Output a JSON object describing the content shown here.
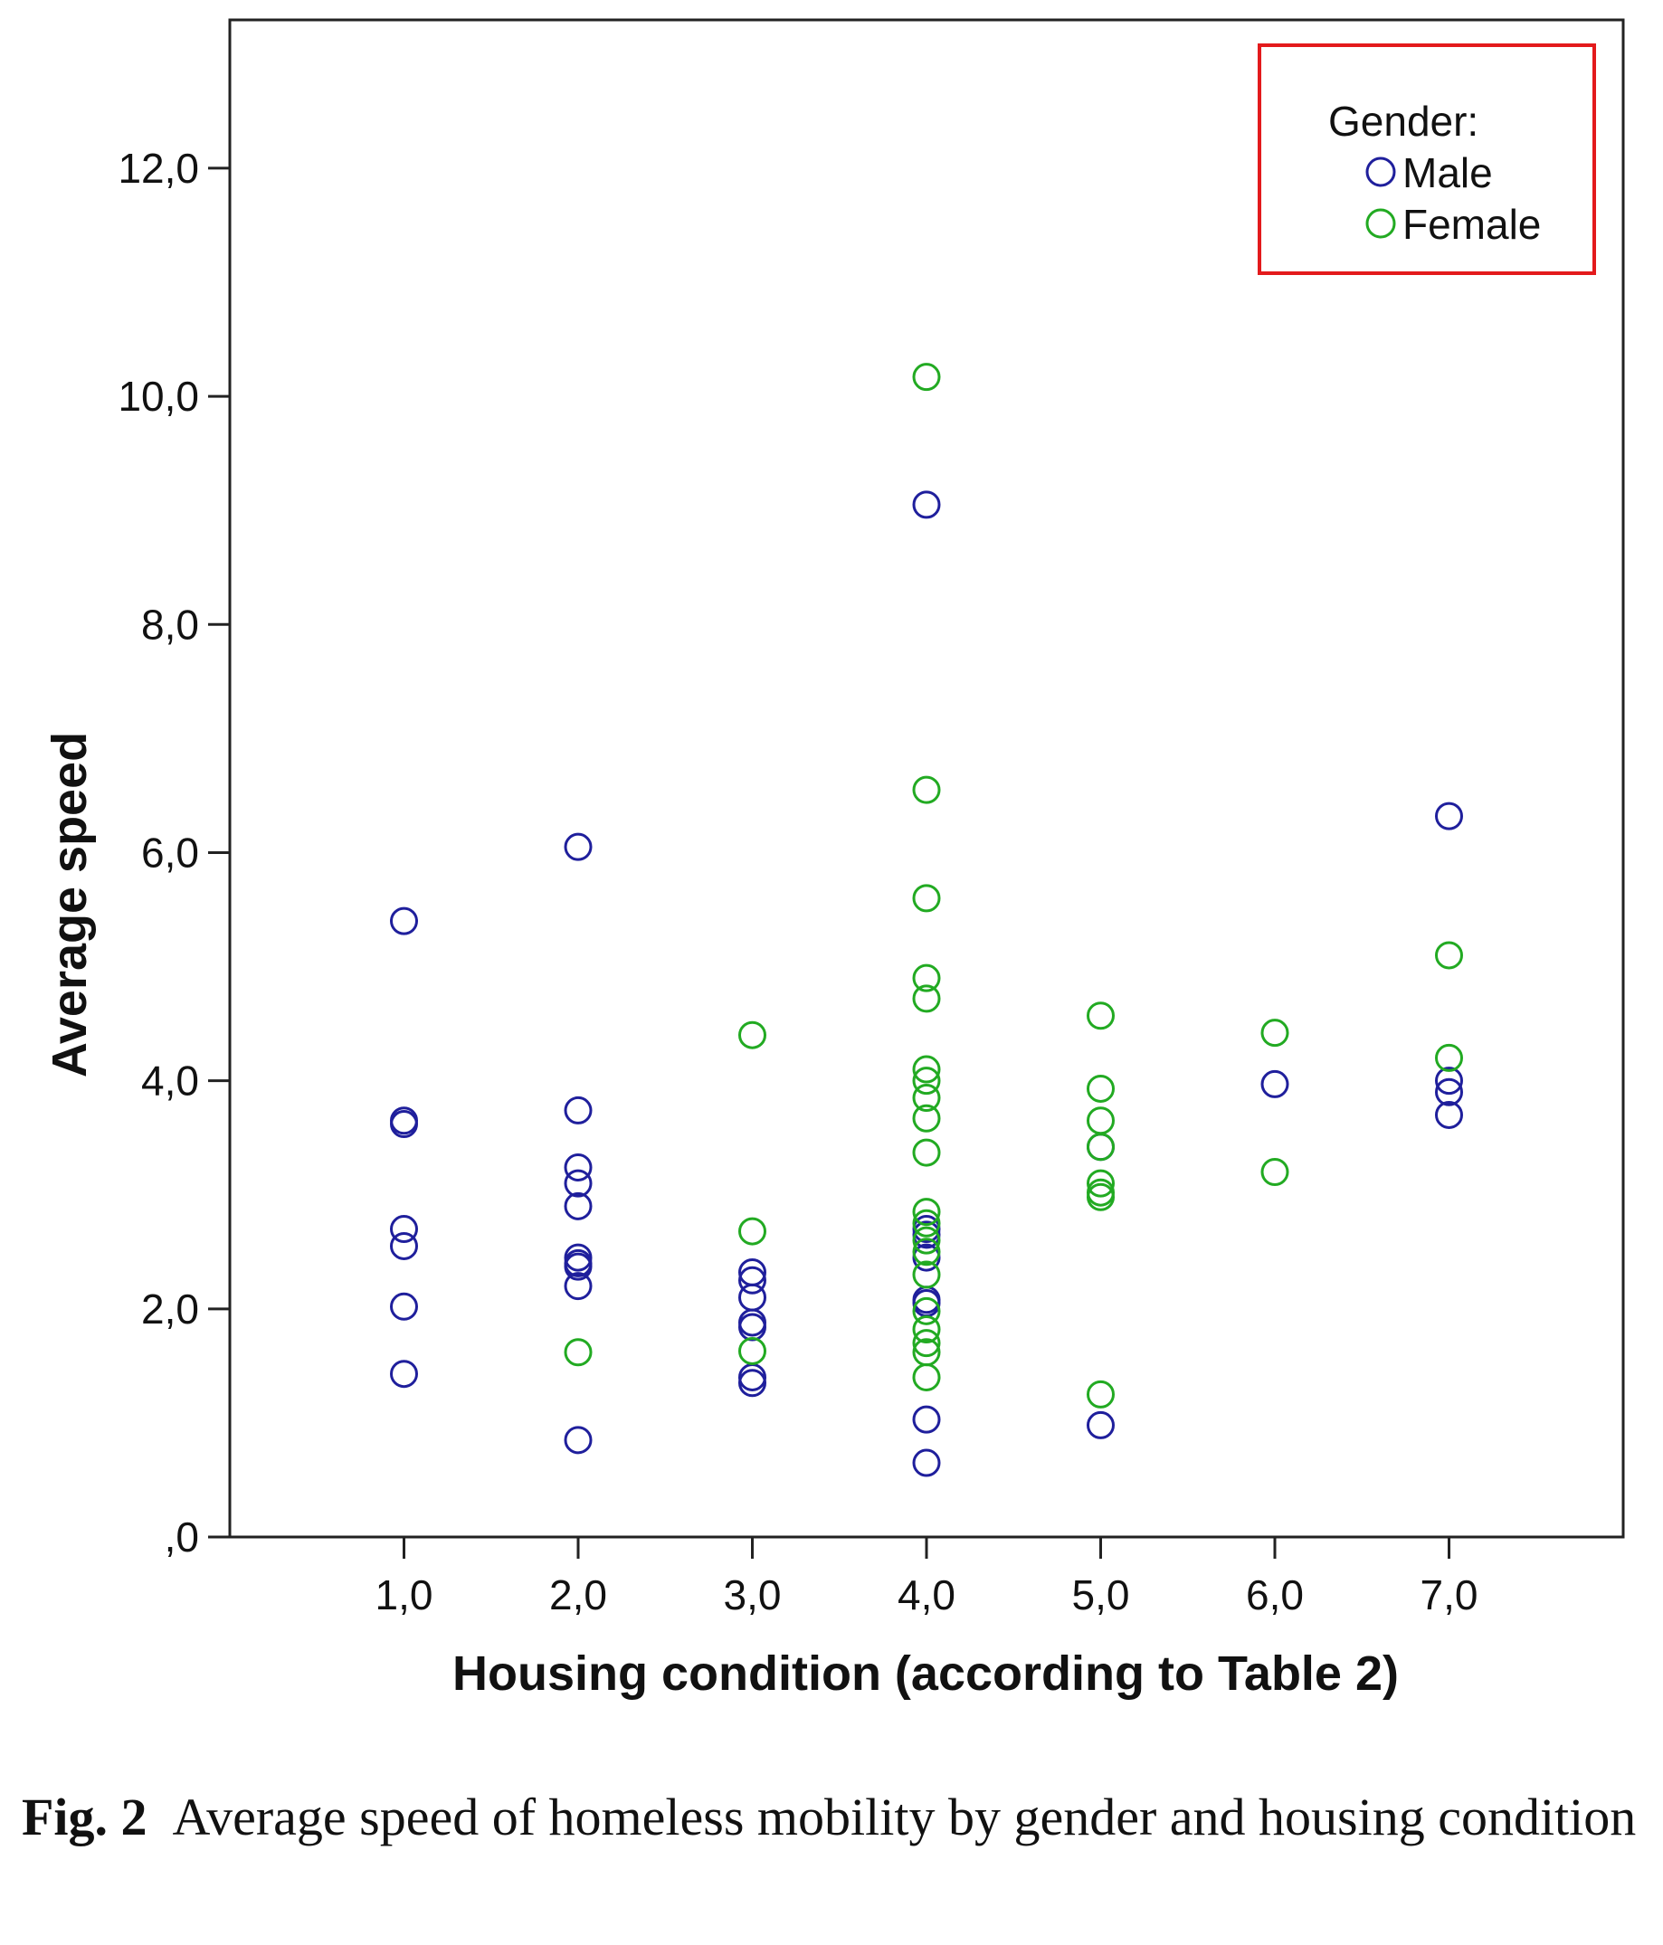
{
  "chart_data": {
    "type": "scatter",
    "title": "",
    "xlabel": "Housing condition (according to Table 2)",
    "ylabel": "Average speed",
    "xlim": [
      0,
      8
    ],
    "ylim": [
      0,
      13.3
    ],
    "x_ticks": [
      1,
      2,
      3,
      4,
      5,
      6,
      7
    ],
    "x_tick_labels": [
      "1,0",
      "2,0",
      "3,0",
      "4,0",
      "5,0",
      "6,0",
      "7,0"
    ],
    "y_ticks": [
      0,
      2,
      4,
      6,
      8,
      10,
      12
    ],
    "y_tick_labels": [
      ",0",
      "2,0",
      "4,0",
      "6,0",
      "8,0",
      "10,0",
      "12,0"
    ],
    "grid": false,
    "legend_position": "top-right",
    "legend_title": "Gender:",
    "series": [
      {
        "name": "Male",
        "color": "#1f1f9c",
        "marker": "open-circle",
        "points": [
          [
            1,
            5.4
          ],
          [
            1,
            3.65
          ],
          [
            1,
            3.62
          ],
          [
            1,
            2.7
          ],
          [
            1,
            2.55
          ],
          [
            1,
            2.02
          ],
          [
            1,
            1.43
          ],
          [
            2,
            6.05
          ],
          [
            2,
            3.74
          ],
          [
            2,
            3.24
          ],
          [
            2,
            3.1
          ],
          [
            2,
            2.9
          ],
          [
            2,
            2.45
          ],
          [
            2,
            2.4
          ],
          [
            2,
            2.37
          ],
          [
            2,
            2.2
          ],
          [
            2,
            0.85
          ],
          [
            3,
            2.32
          ],
          [
            3,
            2.25
          ],
          [
            3,
            2.1
          ],
          [
            3,
            1.88
          ],
          [
            3,
            1.84
          ],
          [
            3,
            1.4
          ],
          [
            3,
            1.35
          ],
          [
            4,
            9.05
          ],
          [
            4,
            2.7
          ],
          [
            4,
            2.65
          ],
          [
            4,
            2.45
          ],
          [
            4,
            2.08
          ],
          [
            4,
            2.05
          ],
          [
            4,
            1.03
          ],
          [
            4,
            0.65
          ],
          [
            5,
            3.42
          ],
          [
            5,
            0.98
          ],
          [
            6,
            3.97
          ],
          [
            7,
            6.32
          ],
          [
            7,
            4.0
          ],
          [
            7,
            3.9
          ],
          [
            7,
            3.7
          ]
        ]
      },
      {
        "name": "Female",
        "color": "#22aa22",
        "marker": "open-circle",
        "points": [
          [
            2,
            1.62
          ],
          [
            3,
            4.4
          ],
          [
            3,
            2.68
          ],
          [
            3,
            1.63
          ],
          [
            4,
            10.17
          ],
          [
            4,
            6.55
          ],
          [
            4,
            5.6
          ],
          [
            4,
            4.9
          ],
          [
            4,
            4.72
          ],
          [
            4,
            4.1
          ],
          [
            4,
            4.0
          ],
          [
            4,
            3.85
          ],
          [
            4,
            3.67
          ],
          [
            4,
            3.37
          ],
          [
            4,
            2.85
          ],
          [
            4,
            2.75
          ],
          [
            4,
            2.6
          ],
          [
            4,
            2.5
          ],
          [
            4,
            2.3
          ],
          [
            4,
            1.98
          ],
          [
            4,
            1.82
          ],
          [
            4,
            1.7
          ],
          [
            4,
            1.62
          ],
          [
            4,
            1.4
          ],
          [
            5,
            4.57
          ],
          [
            5,
            3.93
          ],
          [
            5,
            3.65
          ],
          [
            5,
            3.42
          ],
          [
            5,
            3.1
          ],
          [
            5,
            3.02
          ],
          [
            5,
            2.98
          ],
          [
            5,
            1.25
          ],
          [
            6,
            4.42
          ],
          [
            6,
            3.2
          ],
          [
            7,
            5.1
          ],
          [
            7,
            4.2
          ]
        ]
      }
    ]
  },
  "caption": {
    "label": "Fig. 2",
    "text": "Average speed of homeless mobility by gender and housing condition"
  }
}
